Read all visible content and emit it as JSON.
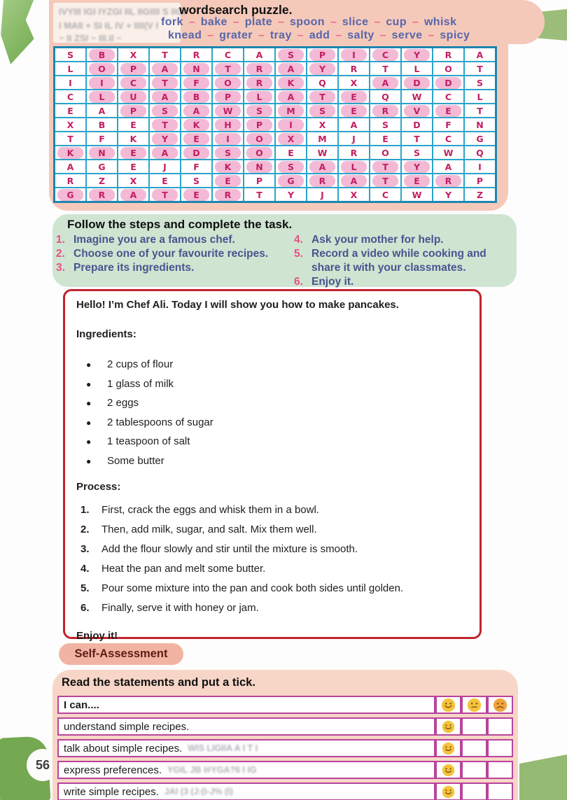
{
  "page_number": "56",
  "colors": {
    "panel_pink": "#f5c9ba",
    "panel_pink_bottom": "#f8d6c7",
    "panel_green": "#cfe5d2",
    "grid_border": "#2ba4cb",
    "grid_letter": "#c21f63",
    "grid_highlight": "#f4bad5",
    "word_blue": "#5766ab",
    "dash_pink": "#ef6a8c",
    "step_number_pink": "#ec4e86",
    "step_text_blue": "#49548e",
    "recipe_border_red": "#c2232e",
    "pill_bg": "#f1b4a3",
    "pill_text": "#5e1c15",
    "table_border": "#b8449c",
    "face_yellow": "#f5c33c",
    "face_orange": "#f0a33c",
    "green_shape": "#8db873"
  },
  "wordsearch": {
    "ghost_line1": "IVYIII IGI IYZGI IIL IIGIIII S IIGI",
    "title": "wordsearch puzzle.",
    "ghost_line2": "I MAII + SI IL IV + IIII(V I",
    "ghost_line3": "~ II ZSI ~ III.II ~",
    "separator": "–",
    "words_line1": [
      "fork",
      "bake",
      "plate",
      "spoon",
      "slice",
      "cup",
      "whisk"
    ],
    "words_line2": [
      "knead",
      "grater",
      "tray",
      "add",
      "salty",
      "serve",
      "spicy"
    ],
    "grid_rows": [
      "SBXTRCASPICYRA",
      "LOPANTRAYRTLOT",
      "IICTFORKQXADDS",
      "CLUABPLATEQWCL",
      "EAPSAWSMSERVET",
      "XBETKHPIXASDFN",
      "TFKYEIOXMJETCG",
      "KNEADSOEWROSWQ",
      "AGEJFKNSALTYAI",
      "RZXESEPGRATERP",
      "GRATERTYJXCWYZ"
    ],
    "highlights": [
      [
        1,
        2
      ],
      [
        1,
        8
      ],
      [
        1,
        9
      ],
      [
        1,
        10
      ],
      [
        1,
        11
      ],
      [
        1,
        12
      ],
      [
        2,
        2
      ],
      [
        2,
        3
      ],
      [
        2,
        4
      ],
      [
        2,
        5
      ],
      [
        2,
        6
      ],
      [
        2,
        7
      ],
      [
        2,
        8
      ],
      [
        2,
        9
      ],
      [
        3,
        2
      ],
      [
        3,
        3
      ],
      [
        3,
        4
      ],
      [
        3,
        5
      ],
      [
        3,
        6
      ],
      [
        3,
        7
      ],
      [
        3,
        8
      ],
      [
        3,
        11
      ],
      [
        3,
        12
      ],
      [
        3,
        13
      ],
      [
        4,
        2
      ],
      [
        4,
        3
      ],
      [
        4,
        4
      ],
      [
        4,
        5
      ],
      [
        4,
        6
      ],
      [
        4,
        7
      ],
      [
        4,
        8
      ],
      [
        4,
        9
      ],
      [
        4,
        10
      ],
      [
        5,
        3
      ],
      [
        5,
        4
      ],
      [
        5,
        5
      ],
      [
        5,
        6
      ],
      [
        5,
        7
      ],
      [
        5,
        8
      ],
      [
        5,
        9
      ],
      [
        5,
        10
      ],
      [
        5,
        11
      ],
      [
        5,
        12
      ],
      [
        5,
        13
      ],
      [
        6,
        4
      ],
      [
        6,
        5
      ],
      [
        6,
        6
      ],
      [
        6,
        7
      ],
      [
        6,
        8
      ],
      [
        7,
        4
      ],
      [
        7,
        5
      ],
      [
        7,
        6
      ],
      [
        7,
        7
      ],
      [
        7,
        8
      ],
      [
        8,
        1
      ],
      [
        8,
        2
      ],
      [
        8,
        3
      ],
      [
        8,
        4
      ],
      [
        8,
        5
      ],
      [
        8,
        6
      ],
      [
        8,
        7
      ],
      [
        9,
        6
      ],
      [
        9,
        7
      ],
      [
        9,
        8
      ],
      [
        9,
        9
      ],
      [
        9,
        10
      ],
      [
        9,
        11
      ],
      [
        9,
        12
      ],
      [
        10,
        6
      ],
      [
        10,
        8
      ],
      [
        10,
        9
      ],
      [
        10,
        10
      ],
      [
        10,
        11
      ],
      [
        10,
        12
      ],
      [
        10,
        13
      ],
      [
        11,
        1
      ],
      [
        11,
        2
      ],
      [
        11,
        3
      ],
      [
        11,
        4
      ],
      [
        11,
        5
      ],
      [
        11,
        6
      ]
    ]
  },
  "task": {
    "title": "Follow the steps and complete the task.",
    "left": [
      {
        "num": "1.",
        "text": "Imagine you are a famous chef."
      },
      {
        "num": "2.",
        "text": "Choose one of your favourite recipes."
      },
      {
        "num": "3.",
        "text": "Prepare its ingredients."
      }
    ],
    "right": [
      {
        "num": "4.",
        "text": "Ask your mother for help."
      },
      {
        "num": "5.",
        "text": "Record a video while cooking and"
      },
      {
        "num": "",
        "text": "share it with your classmates."
      },
      {
        "num": "6.",
        "text": "Enjoy it."
      }
    ]
  },
  "recipe": {
    "intro": "Hello! I’m Chef Ali. Today I will show you how to make pancakes.",
    "ingredients_label": "Ingredients:",
    "ingredients": [
      "2 cups of flour",
      "1 glass of milk",
      "2 eggs",
      "2 tablespoons of sugar",
      "1 teaspoon of salt",
      "Some butter"
    ],
    "process_label": "Process:",
    "process": [
      {
        "num": "1.",
        "text": "First, crack the eggs and whisk them in a bowl."
      },
      {
        "num": "2.",
        "text": "Then, add milk, sugar, and salt. Mix them well."
      },
      {
        "num": "3.",
        "text": "Add the flour slowly and stir until the mixture is smooth."
      },
      {
        "num": "4.",
        "text": "Heat the pan and melt some butter."
      },
      {
        "num": "5.",
        "text": "Pour some mixture into the pan and cook both sides until golden."
      },
      {
        "num": "6.",
        "text": "Finally, serve it with honey or jam."
      }
    ],
    "outro": "Enjoy it!"
  },
  "assessment": {
    "pill": "Self-Assessment",
    "instruction": "Read the statements and put a tick.",
    "header": "I can....",
    "header_icons": [
      "happy",
      "neutral",
      "sad"
    ],
    "rows": [
      {
        "text": "understand simple recipes.",
        "ghost": "",
        "ticks": [
          "happy",
          "",
          ""
        ]
      },
      {
        "text": "talk about simple recipes.",
        "ghost": "WIS LIGIIA A   I T I",
        "ticks": [
          "happy",
          "",
          ""
        ]
      },
      {
        "text": "express preferences.",
        "ghost": "YGIL JB I#YGA?6   I IG",
        "ticks": [
          "happy",
          "",
          ""
        ]
      },
      {
        "text": "write simple recipes.",
        "ghost": "JAI (3   (J:(I-J%   (I)",
        "ticks": [
          "happy",
          "",
          ""
        ]
      }
    ]
  }
}
